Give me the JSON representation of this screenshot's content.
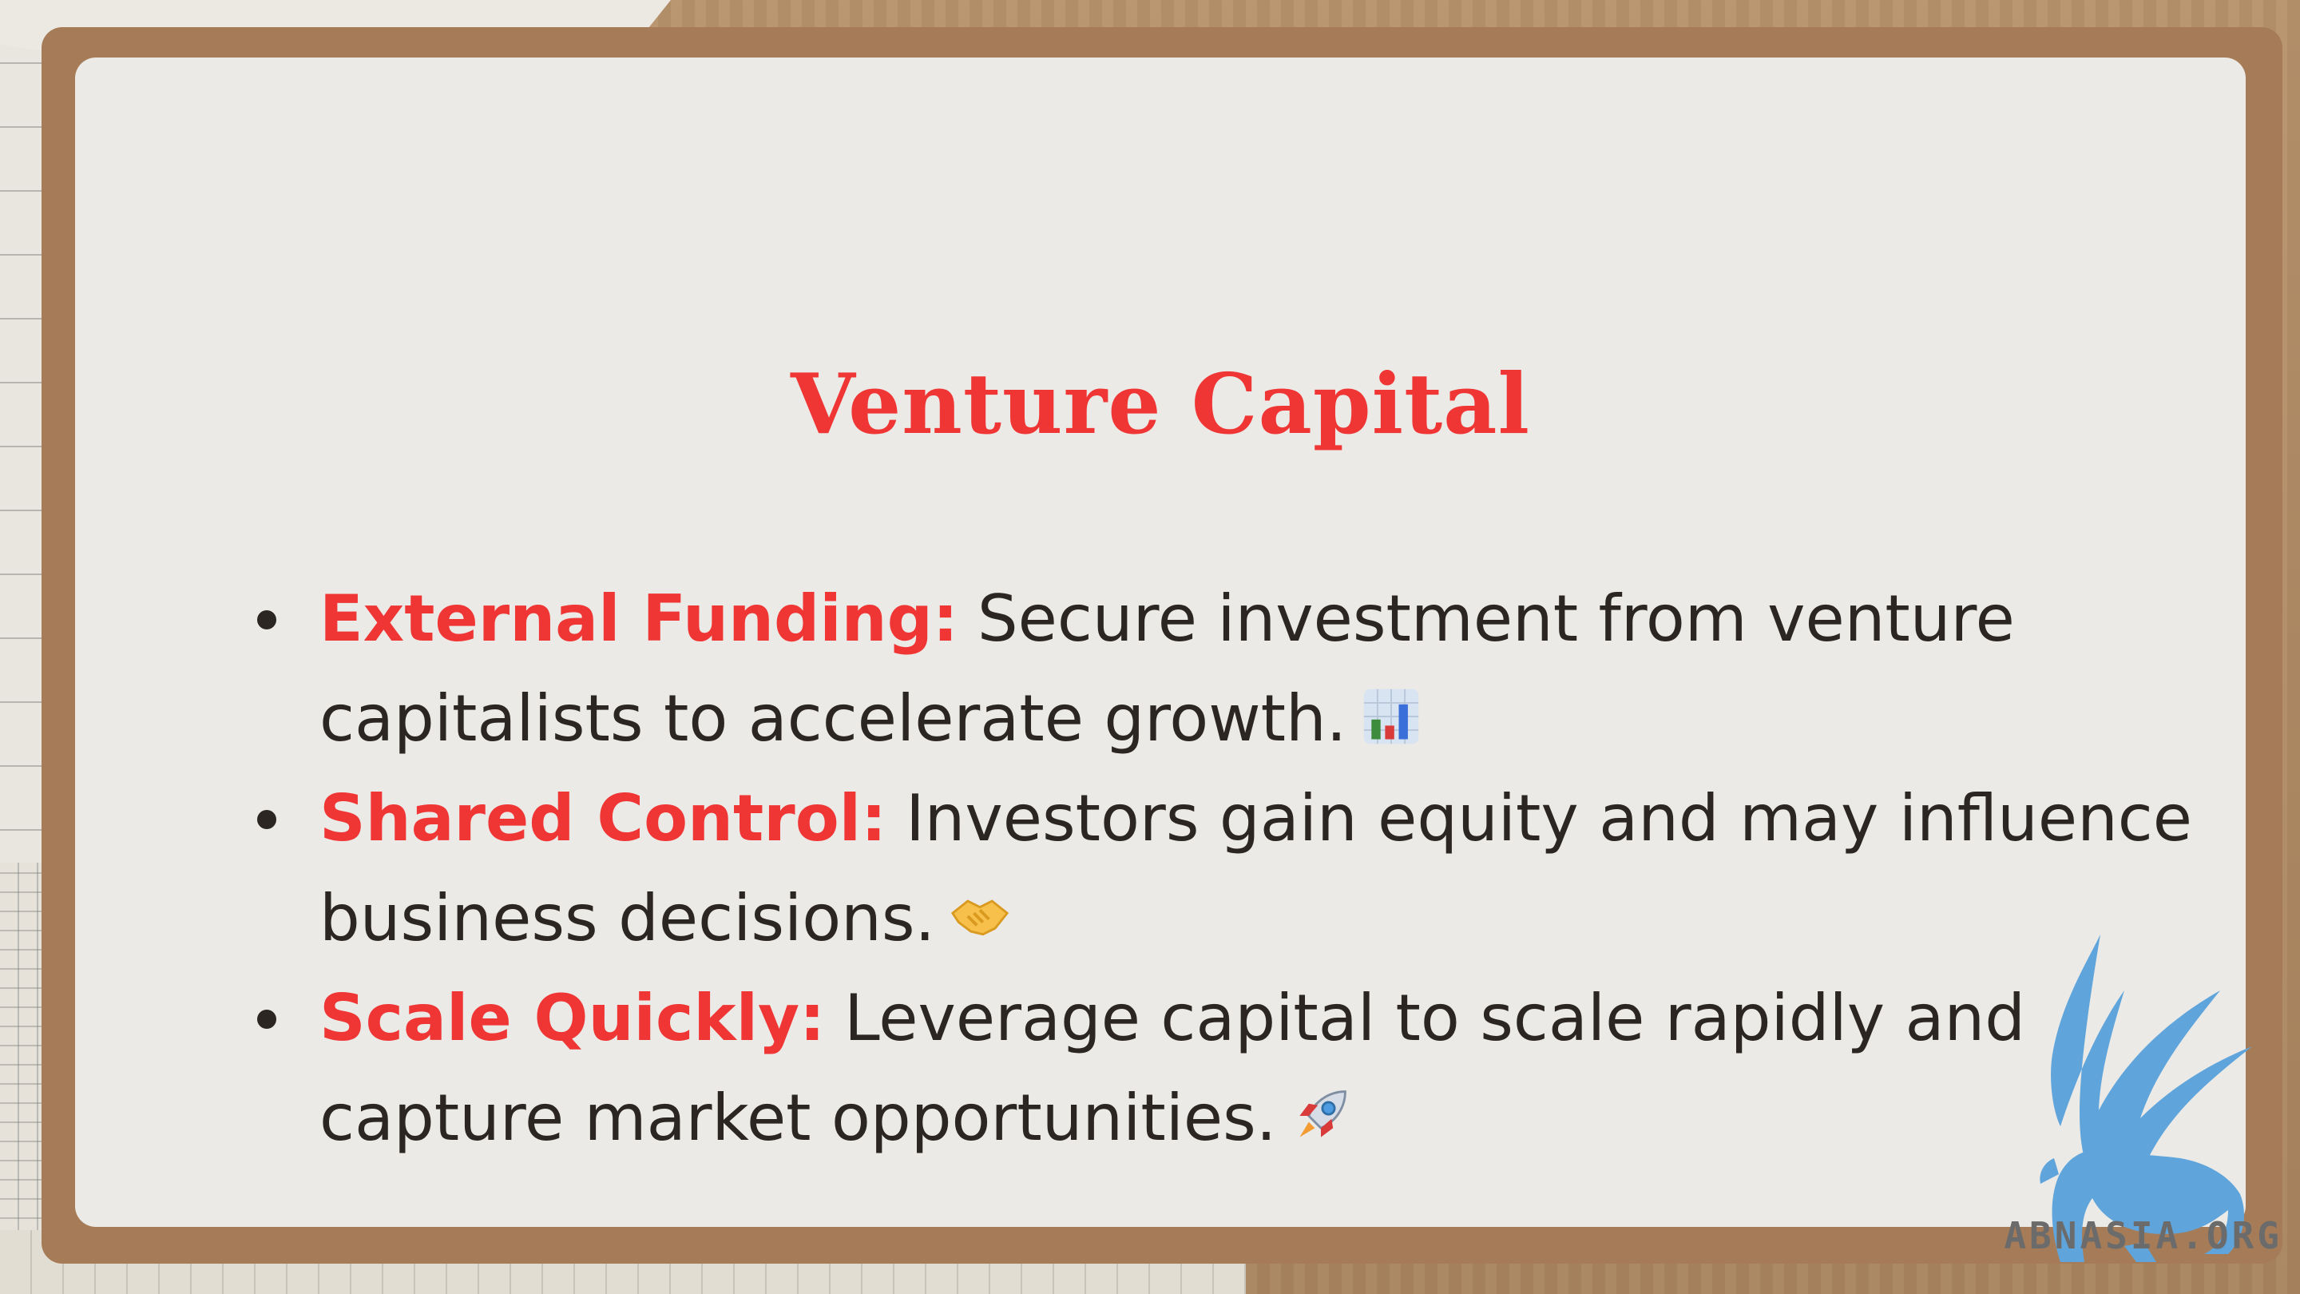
{
  "slide": {
    "title": "Venture Capital",
    "bullets": [
      {
        "lead": "External Funding:",
        "text": "Secure investment from venture capitalists to accelerate growth.",
        "icon": "bar-chart-icon"
      },
      {
        "lead": "Shared Control:",
        "text": "Investors gain equity and may influence business decisions.",
        "icon": "handshake-icon"
      },
      {
        "lead": "Scale Quickly:",
        "text": "Leverage capital to scale rapidly and capture market opportunities.",
        "icon": "rocket-icon"
      }
    ]
  },
  "watermark": {
    "text": "ABNASIA.ORG",
    "icon": "griffin-logo-icon"
  },
  "colors": {
    "accent": "#f03535",
    "text": "#2b2622",
    "card": "#ebeae6",
    "frame": "#a67c58",
    "logo": "#5fa5dc"
  }
}
